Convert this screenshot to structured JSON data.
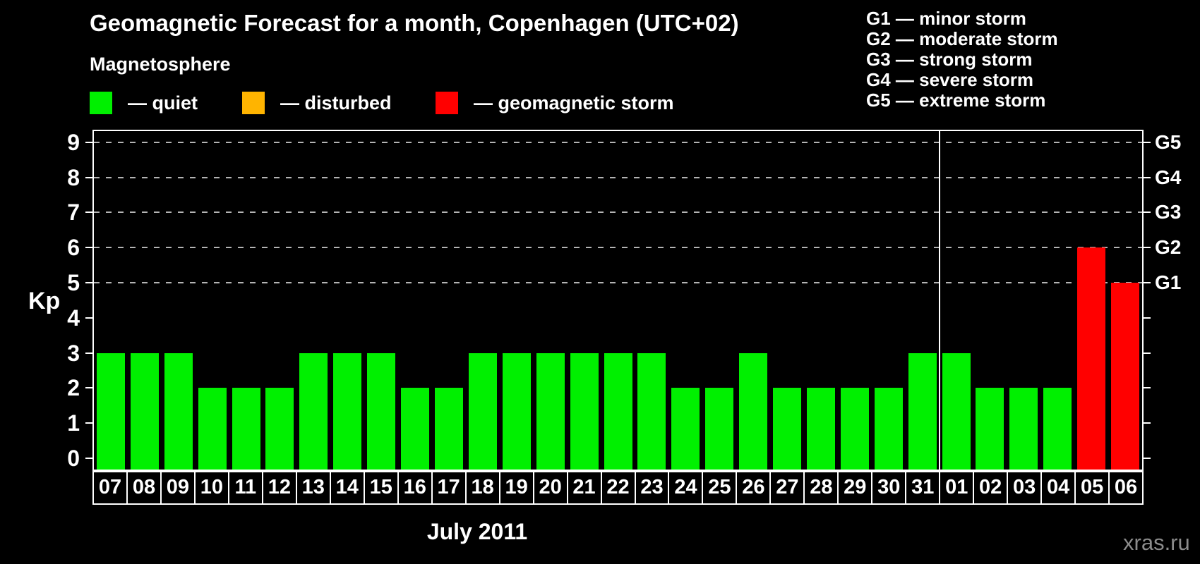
{
  "page": {
    "background": "#000000",
    "axis_color": "#ffffff",
    "grid_color": "#b4b4b4"
  },
  "title": "Geomagnetic Forecast for a month, Copenhagen (UTC+02)",
  "legend": {
    "heading": "Magnetosphere",
    "items": [
      {
        "key": "quiet",
        "color": "#00f000",
        "label": "— quiet"
      },
      {
        "key": "disturbed",
        "color": "#ffb400",
        "label": "— disturbed"
      },
      {
        "key": "storm",
        "color": "#ff0000",
        "label": "— geomagnetic storm"
      }
    ]
  },
  "g_scale": {
    "lines": [
      "G1 — minor storm",
      "G2 — moderate storm",
      "G3 — strong storm",
      "G4 — severe storm",
      "G5 — extreme storm"
    ]
  },
  "chart_data": {
    "type": "bar",
    "title": "Geomagnetic Forecast for a month, Copenhagen (UTC+02)",
    "xlabel": "July 2011",
    "ylabel": "Kp",
    "ylim": [
      0,
      9
    ],
    "yticks": [
      0,
      1,
      2,
      3,
      4,
      5,
      6,
      7,
      8,
      9
    ],
    "gridlines_at": [
      5,
      6,
      7,
      8,
      9
    ],
    "grid_style": "dashed horizontal lines only at storm levels G1–G5",
    "legend_position": "top-left",
    "right_axis": [
      {
        "label": "G1",
        "value": 5
      },
      {
        "label": "G2",
        "value": 6
      },
      {
        "label": "G3",
        "value": 7
      },
      {
        "label": "G4",
        "value": 8
      },
      {
        "label": "G5",
        "value": 9
      }
    ],
    "month_separator_after_index": 24,
    "bars": [
      {
        "day": "07",
        "kp": 3,
        "status": "quiet"
      },
      {
        "day": "08",
        "kp": 3,
        "status": "quiet"
      },
      {
        "day": "09",
        "kp": 3,
        "status": "quiet"
      },
      {
        "day": "10",
        "kp": 2,
        "status": "quiet"
      },
      {
        "day": "11",
        "kp": 2,
        "status": "quiet"
      },
      {
        "day": "12",
        "kp": 2,
        "status": "quiet"
      },
      {
        "day": "13",
        "kp": 3,
        "status": "quiet"
      },
      {
        "day": "14",
        "kp": 3,
        "status": "quiet"
      },
      {
        "day": "15",
        "kp": 3,
        "status": "quiet"
      },
      {
        "day": "16",
        "kp": 2,
        "status": "quiet"
      },
      {
        "day": "17",
        "kp": 2,
        "status": "quiet"
      },
      {
        "day": "18",
        "kp": 3,
        "status": "quiet"
      },
      {
        "day": "19",
        "kp": 3,
        "status": "quiet"
      },
      {
        "day": "20",
        "kp": 3,
        "status": "quiet"
      },
      {
        "day": "21",
        "kp": 3,
        "status": "quiet"
      },
      {
        "day": "22",
        "kp": 3,
        "status": "quiet"
      },
      {
        "day": "23",
        "kp": 3,
        "status": "quiet"
      },
      {
        "day": "24",
        "kp": 2,
        "status": "quiet"
      },
      {
        "day": "25",
        "kp": 2,
        "status": "quiet"
      },
      {
        "day": "26",
        "kp": 3,
        "status": "quiet"
      },
      {
        "day": "27",
        "kp": 2,
        "status": "quiet"
      },
      {
        "day": "28",
        "kp": 2,
        "status": "quiet"
      },
      {
        "day": "29",
        "kp": 2,
        "status": "quiet"
      },
      {
        "day": "30",
        "kp": 2,
        "status": "quiet"
      },
      {
        "day": "31",
        "kp": 3,
        "status": "quiet"
      },
      {
        "day": "01",
        "kp": 3,
        "status": "quiet"
      },
      {
        "day": "02",
        "kp": 2,
        "status": "quiet"
      },
      {
        "day": "03",
        "kp": 2,
        "status": "quiet"
      },
      {
        "day": "04",
        "kp": 2,
        "status": "quiet"
      },
      {
        "day": "05",
        "kp": 6,
        "status": "storm"
      },
      {
        "day": "06",
        "kp": 5,
        "status": "storm"
      }
    ]
  },
  "footer": {
    "watermark": "xras.ru"
  }
}
